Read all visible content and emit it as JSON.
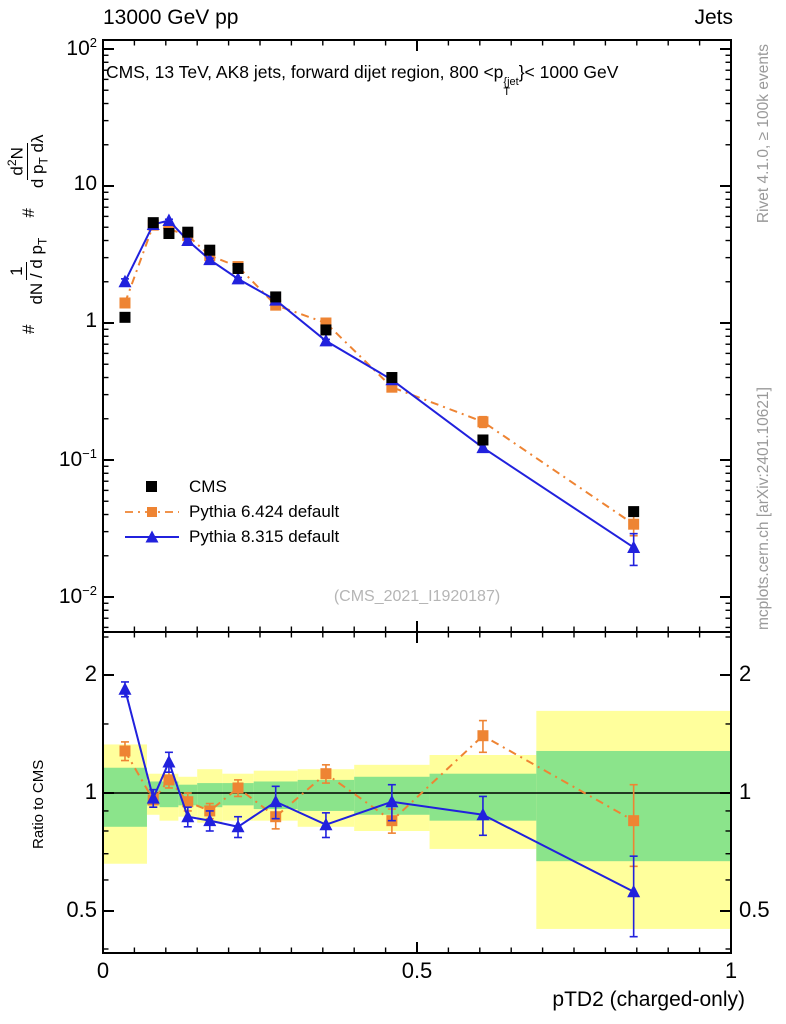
{
  "header": {
    "left": "13000 GeV pp",
    "right": "Jets"
  },
  "title": {
    "prefix": "CMS, 13 TeV, AK8 jets, forward dijet region, 800 <p",
    "sup": "{jet",
    "sub": "T",
    "suffix": "}< 1000 GeV"
  },
  "ylabel": {
    "hash1": "#",
    "frac1_num": "1",
    "frac1_den_pre": "dN / d p",
    "frac1_den_sub": "T",
    "hash2": "#",
    "frac2_num_pre": "d",
    "frac2_num_sup": "2",
    "frac2_num_post": "N",
    "frac2_den_pre": "d p",
    "frac2_den_sub": "T",
    "frac2_den_post": " dλ"
  },
  "ratio_ylabel": "Ratio to CMS",
  "xlabel": "pTD2 (charged-only)",
  "watermark": "(CMS_2021_I1920187)",
  "credits": {
    "top_right": "Rivet 4.1.0, ≥ 100k events",
    "bottom_right": "mcplots.cern.ch [arXiv:2401.10621]"
  },
  "legend": {
    "items": [
      {
        "label": "CMS"
      },
      {
        "label": "Pythia 6.424 default"
      },
      {
        "label": "Pythia 8.315 default"
      }
    ]
  },
  "colors": {
    "black": "#000000",
    "orange": "#ee8433",
    "blue": "#2121dd",
    "band_green": "#8be48b",
    "band_yellow": "#ffff9c",
    "gray_text": "#999999",
    "watermark": "#b5b5b5"
  },
  "axes": {
    "x": {
      "range": [
        0,
        1
      ],
      "minor_step": 0.05,
      "major": [
        {
          "v": 0,
          "t": "0"
        },
        {
          "v": 0.5,
          "t": "0.5"
        },
        {
          "v": 1,
          "t": "1"
        }
      ]
    },
    "y_main": {
      "scale": "log",
      "ticks": [
        {
          "v": 100,
          "base": "10",
          "exp": "2"
        },
        {
          "v": 10,
          "base": "10",
          "exp": ""
        },
        {
          "v": 1,
          "base": "1",
          "exp": ""
        },
        {
          "v": 0.1,
          "base": "10",
          "exp": "−1"
        },
        {
          "v": 0.01,
          "base": "10",
          "exp": "−2"
        }
      ]
    },
    "y_ratio": {
      "scale": "log",
      "ticks": [
        {
          "v": 2,
          "t": "2"
        },
        {
          "v": 1,
          "t": "1"
        },
        {
          "v": 0.5,
          "t": "0.5"
        }
      ],
      "minor": [
        0.4,
        0.6,
        0.7,
        0.8,
        0.9,
        1.5,
        2.5
      ]
    }
  },
  "chart_data": {
    "type": "line",
    "xlabel": "pTD2 (charged-only)",
    "x": [
      0.035,
      0.08,
      0.105,
      0.135,
      0.17,
      0.215,
      0.275,
      0.355,
      0.46,
      0.605,
      0.845
    ],
    "bin_edges": [
      0,
      0.07,
      0.09,
      0.12,
      0.15,
      0.19,
      0.24,
      0.31,
      0.4,
      0.52,
      0.69,
      1.0
    ],
    "main": {
      "yscale": "log",
      "ylim": [
        0.0055,
        116
      ],
      "xlim": [
        0,
        1
      ],
      "series": [
        {
          "name": "CMS",
          "colorKey": "black",
          "marker": "square",
          "line": "none",
          "values": [
            1.1,
            5.4,
            4.5,
            4.6,
            3.4,
            2.5,
            1.55,
            0.89,
            0.4,
            0.14,
            0.042
          ],
          "errors": [
            0.04,
            0.12,
            0.1,
            0.1,
            0.08,
            0.06,
            0.04,
            0.025,
            0.012,
            0.005,
            0.002
          ]
        },
        {
          "name": "Pythia 6.424 default",
          "colorKey": "orange",
          "marker": "square",
          "line": "dashdot",
          "values": [
            1.4,
            5.18,
            4.85,
            4.35,
            3.1,
            2.58,
            1.35,
            1.0,
            0.34,
            0.19,
            0.034
          ],
          "errors": [
            0.07,
            0.12,
            0.12,
            0.1,
            0.07,
            0.06,
            0.035,
            0.03,
            0.013,
            0.017,
            0.006
          ]
        },
        {
          "name": "Pythia 8.315 default",
          "colorKey": "blue",
          "marker": "triangle",
          "line": "solid",
          "values": [
            2.0,
            5.24,
            5.6,
            4.0,
            2.9,
            2.1,
            1.47,
            0.74,
            0.385,
            0.123,
            0.023
          ],
          "errors": [
            0.1,
            0.12,
            0.12,
            0.09,
            0.07,
            0.05,
            0.035,
            0.02,
            0.014,
            0.007,
            0.006
          ]
        }
      ]
    },
    "ratio": {
      "reference": "CMS",
      "ylim": [
        0.39,
        2.57
      ],
      "series": [
        {
          "name": "Pythia 6.424 default",
          "colorKey": "orange",
          "marker": "square",
          "line": "dashdot",
          "values": [
            1.28,
            0.96,
            1.08,
            0.95,
            0.9,
            1.03,
            0.87,
            1.12,
            0.85,
            1.4,
            0.85
          ],
          "errors": [
            0.07,
            0.04,
            0.05,
            0.05,
            0.04,
            0.05,
            0.06,
            0.06,
            0.06,
            0.13,
            0.2
          ]
        },
        {
          "name": "Pythia 8.315 default",
          "colorKey": "blue",
          "marker": "triangle",
          "line": "solid",
          "values": [
            1.84,
            0.97,
            1.2,
            0.87,
            0.85,
            0.82,
            0.95,
            0.83,
            0.95,
            0.88,
            0.56
          ],
          "errors": [
            0.08,
            0.05,
            0.07,
            0.05,
            0.05,
            0.05,
            0.09,
            0.06,
            0.1,
            0.1,
            0.13
          ]
        }
      ],
      "bands": {
        "yellow_lo": [
          0.66,
          0.88,
          0.85,
          0.87,
          0.84,
          0.85,
          0.85,
          0.82,
          0.8,
          0.72,
          0.45
        ],
        "yellow_hi": [
          1.33,
          1.12,
          1.12,
          1.1,
          1.15,
          1.12,
          1.14,
          1.15,
          1.18,
          1.25,
          1.62
        ],
        "green_lo": [
          0.82,
          0.93,
          0.92,
          0.93,
          0.92,
          0.93,
          0.91,
          0.9,
          0.88,
          0.85,
          0.67
        ],
        "green_hi": [
          1.16,
          1.07,
          1.07,
          1.05,
          1.06,
          1.06,
          1.07,
          1.08,
          1.1,
          1.12,
          1.28
        ]
      }
    }
  }
}
